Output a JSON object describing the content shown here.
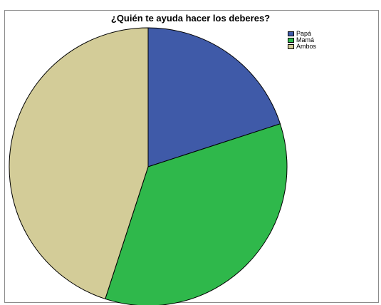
{
  "chart_data": {
    "type": "pie",
    "title": "¿Quién te ayuda hacer los deberes?",
    "categories": [
      "Papá",
      "Mamá",
      "Ambos"
    ],
    "values": [
      20,
      35,
      45
    ],
    "colors": [
      "#3f5aa8",
      "#2fb84b",
      "#d3cc98"
    ],
    "legend_position": "top-right"
  },
  "legend": {
    "items": [
      {
        "label": "Papá",
        "color": "#3f5aa8"
      },
      {
        "label": "Mamá",
        "color": "#2fb84b"
      },
      {
        "label": "Ambos",
        "color": "#d3cc98"
      }
    ]
  }
}
